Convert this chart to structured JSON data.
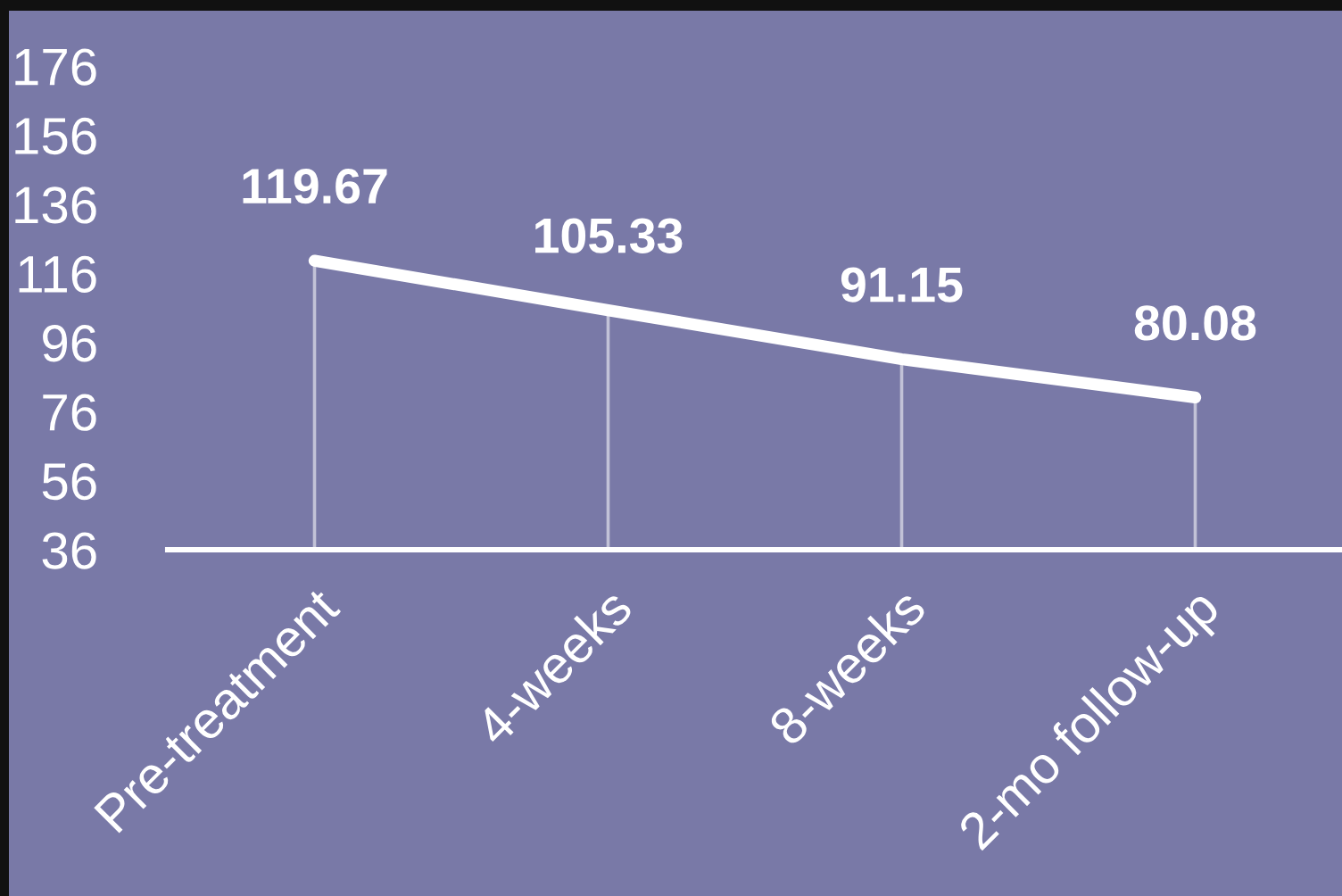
{
  "chart_data": {
    "type": "line",
    "categories": [
      "Pre-treatment",
      "4-weeks",
      "8-weeks",
      "2-mo follow-up"
    ],
    "series": [
      {
        "color": "#ffffff",
        "values": [
          119.67,
          105.33,
          91.15,
          80.08
        ]
      }
    ],
    "ylim": [
      36,
      176
    ],
    "yticks": [
      36,
      56,
      76,
      96,
      116,
      136,
      156,
      176
    ],
    "data_labels": true,
    "line_style": "solid"
  }
}
